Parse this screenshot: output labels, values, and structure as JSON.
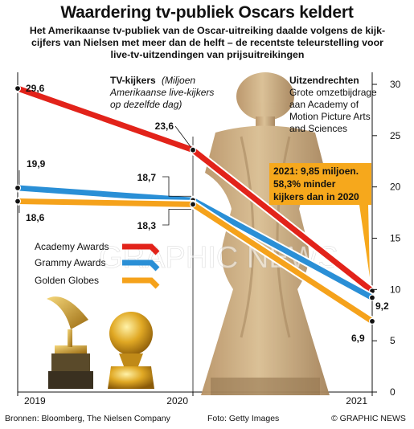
{
  "header": {
    "title": "Waardering tv-publiek Oscars keldert",
    "subtitle_lines": [
      "Het Amerikaanse tv-publiek van de Oscar-uitreiking daalde volgens de kijk-",
      "cijfers van Nielsen met meer dan de helft – de recentste teleurstelling voor",
      "live-tv-uitzendingen van prijsuitreikingen"
    ]
  },
  "chart_data": {
    "type": "line",
    "x": [
      "2019",
      "2020",
      "2021"
    ],
    "ylim": [
      0,
      30
    ],
    "y_ticks": [
      "0",
      "5",
      "10",
      "15",
      "20",
      "25",
      "30"
    ],
    "y_axis_side": "right",
    "grid": false,
    "series": [
      {
        "name": "Academy Awards",
        "color": "#e2231a",
        "values": [
          29.6,
          23.6,
          9.85
        ]
      },
      {
        "name": "Grammy Awards",
        "color": "#2a8fd6",
        "values": [
          19.9,
          18.7,
          9.2
        ]
      },
      {
        "name": "Golden Globes",
        "color": "#f5a21b",
        "values": [
          18.6,
          18.3,
          6.9
        ]
      }
    ],
    "data_labels": {
      "a2019": "29,6",
      "a2020": "23,6",
      "g2019": "19,9",
      "g2020": "18,7",
      "g2021": "9,2",
      "gg2019": "18,6",
      "gg2020": "18,3",
      "gg2021": "6,9"
    },
    "legend_placement": "middle-left",
    "annotations": {
      "tv_kijkers_bold": "TV-kijkers",
      "tv_kijkers_lines": [
        "(Miljoen",
        "Amerikaanse live-kijkers",
        "op dezelfde dag)"
      ],
      "uitzendrechten_bold": "Uitzendrechten",
      "uitzendrechten_lines": [
        "Grote omzetbijdrage",
        "aan Academy of",
        "Motion Picture Arts",
        "and Sciences"
      ],
      "callout_lines": [
        "2021: 9,85 miljoen.",
        "58,3% minder",
        "kijkers dan in 2020"
      ]
    }
  },
  "watermark": "GRAPHIC NEWS",
  "footer": {
    "sources": "Bronnen: Bloomberg, The Nielsen Company",
    "photo": "Foto: Getty Images",
    "copyright": "© GRAPHIC NEWS"
  },
  "colors": {
    "callout_bg": "#f6a81c",
    "statue": "#c8a87a",
    "statue_shadow": "#a5835a"
  }
}
